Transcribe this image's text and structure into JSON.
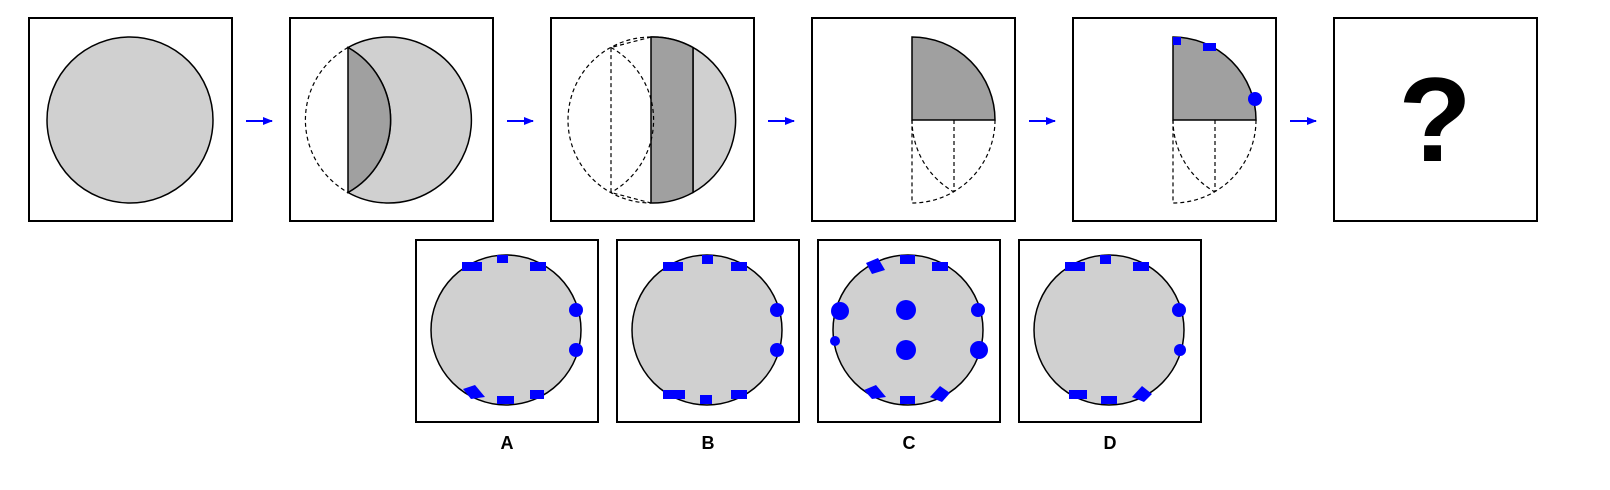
{
  "question_mark": "?",
  "options": [
    {
      "label": "A"
    },
    {
      "label": "B"
    },
    {
      "label": "C"
    },
    {
      "label": "D"
    }
  ],
  "colors": {
    "paper": "#d0d0d0",
    "fold": "#a0a0a0",
    "hole": "#0000ff",
    "arrow": "#0000ff",
    "outline": "#000000"
  }
}
